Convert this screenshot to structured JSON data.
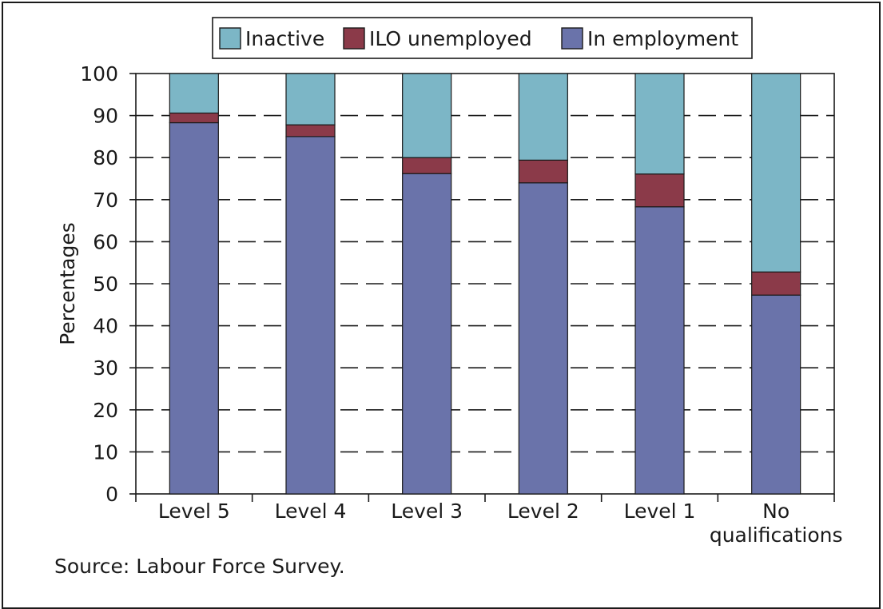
{
  "chart_data": {
    "type": "bar",
    "stacked": true,
    "categories": [
      [
        "Level 5"
      ],
      [
        "Level 4"
      ],
      [
        "Level 3"
      ],
      [
        "Level 2"
      ],
      [
        "Level 1"
      ],
      [
        "No",
        "qualifications"
      ]
    ],
    "series": [
      {
        "name": "In employment",
        "color": "#6a73aa",
        "values": [
          88.3,
          85.0,
          76.2,
          74.0,
          68.3,
          47.3
        ]
      },
      {
        "name": "ILO unemployed",
        "color": "#8b3a49",
        "values": [
          2.3,
          2.8,
          3.8,
          5.4,
          7.8,
          5.5
        ]
      },
      {
        "name": "Inactive",
        "color": "#7cb6c6",
        "values": [
          9.4,
          12.2,
          20.0,
          20.6,
          23.9,
          47.2
        ]
      }
    ],
    "legend_order": [
      "Inactive",
      "ILO unemployed",
      "In employment"
    ],
    "legend_position": "top",
    "ylabel": "Percentages",
    "xlabel": "",
    "ylim": [
      0,
      100
    ],
    "yticks": [
      0,
      10,
      20,
      30,
      40,
      50,
      60,
      70,
      80,
      90,
      100
    ],
    "grid": "dashed horizontal"
  },
  "source_note": "Source: Labour Force Survey."
}
